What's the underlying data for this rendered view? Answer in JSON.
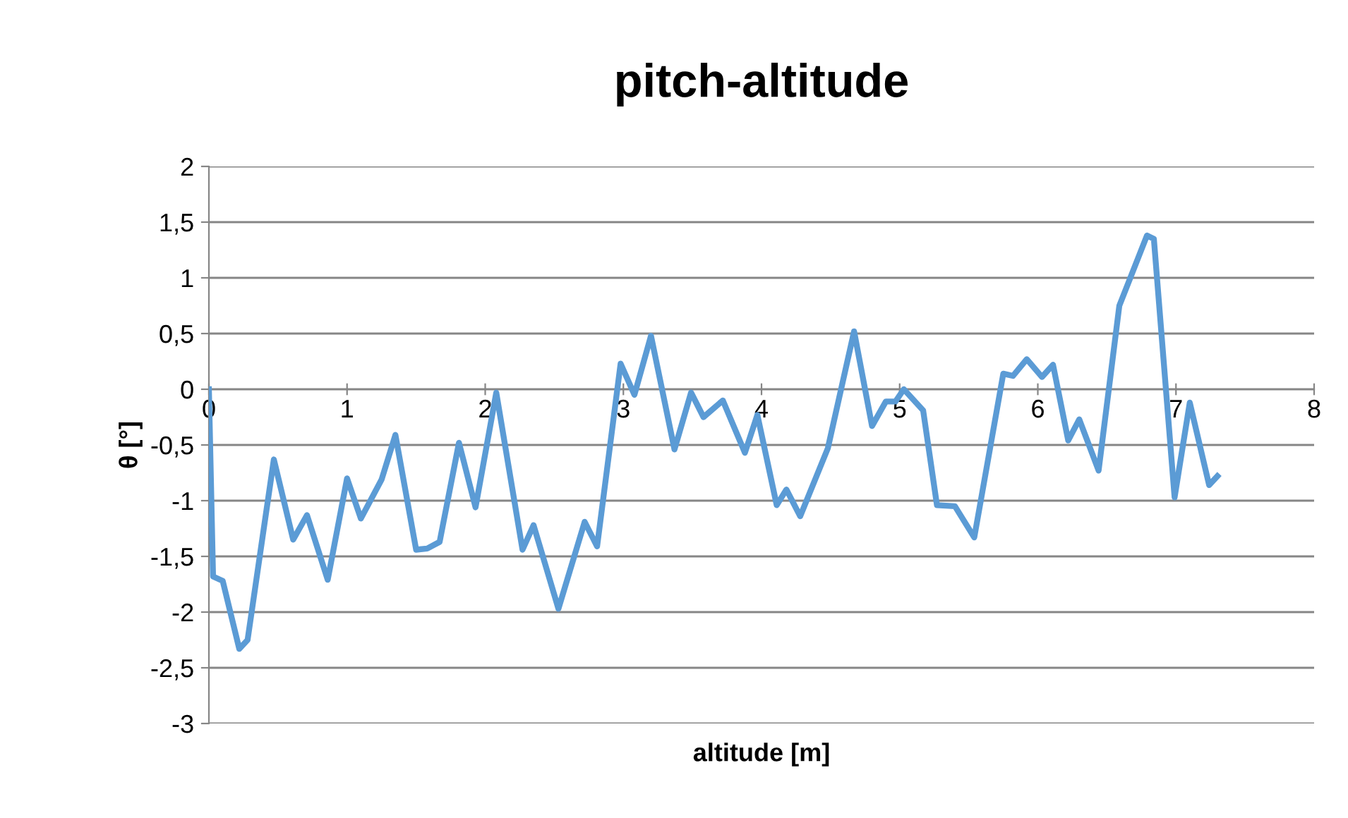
{
  "chart_data": {
    "type": "line",
    "title": "pitch-altitude",
    "xlabel": "altitude [m]",
    "ylabel": "θ [°]",
    "series": [
      {
        "color": "#5b9bd5",
        "x": [
          0,
          0.03,
          0.1,
          0.22,
          0.28,
          0.47,
          0.61,
          0.71,
          0.86,
          1.0,
          1.1,
          1.25,
          1.35,
          1.5,
          1.58,
          1.67,
          1.81,
          1.93,
          2.08,
          2.27,
          2.35,
          2.53,
          2.72,
          2.81,
          2.98,
          3.08,
          3.2,
          3.37,
          3.49,
          3.58,
          3.72,
          3.88,
          3.97,
          4.11,
          4.18,
          4.28,
          4.48,
          4.67,
          4.8,
          4.9,
          4.97,
          5.03,
          5.17,
          5.27,
          5.4,
          5.54,
          5.75,
          5.82,
          5.92,
          6.03,
          6.11,
          6.22,
          6.3,
          6.44,
          6.59,
          6.66,
          6.79,
          6.84,
          6.99,
          7.1,
          7.24,
          7.3
        ],
        "values": [
          0,
          -1.68,
          -1.72,
          -2.33,
          -2.25,
          -0.63,
          -1.35,
          -1.13,
          -1.71,
          -0.8,
          -1.16,
          -0.81,
          -0.41,
          -1.44,
          -1.43,
          -1.37,
          -0.48,
          -1.06,
          -0.03,
          -1.44,
          -1.22,
          -1.97,
          -1.19,
          -1.41,
          0.23,
          -0.05,
          0.48,
          -0.54,
          -0.03,
          -0.25,
          -0.1,
          -0.57,
          -0.23,
          -1.04,
          -0.9,
          -1.14,
          -0.53,
          0.52,
          -0.33,
          -0.11,
          -0.11,
          0.0,
          -0.19,
          -1.04,
          -1.05,
          -1.33,
          0.14,
          0.12,
          0.27,
          0.11,
          0.22,
          -0.46,
          -0.27,
          -0.73,
          0.75,
          0.97,
          1.38,
          1.35,
          -0.97,
          -0.12,
          -0.86,
          -0.78
        ]
      }
    ],
    "xlim": [
      0,
      8
    ],
    "xticks": [
      0,
      1,
      2,
      3,
      4,
      5,
      6,
      7,
      8
    ],
    "ylim": [
      -3,
      2
    ],
    "yticks": [
      {
        "value": -3,
        "label": "-3"
      },
      {
        "value": -2.5,
        "label": "-2,5"
      },
      {
        "value": -2,
        "label": "-2"
      },
      {
        "value": -1.5,
        "label": "-1,5"
      },
      {
        "value": -1,
        "label": "-1"
      },
      {
        "value": -0.5,
        "label": "-0,5"
      },
      {
        "value": 0,
        "label": "0"
      },
      {
        "value": 0.5,
        "label": "0,5"
      },
      {
        "value": 1,
        "label": "1"
      },
      {
        "value": 1.5,
        "label": "1,5"
      },
      {
        "value": 2,
        "label": "2"
      }
    ],
    "grid": "y",
    "marker": "none",
    "line_style": "solid"
  }
}
